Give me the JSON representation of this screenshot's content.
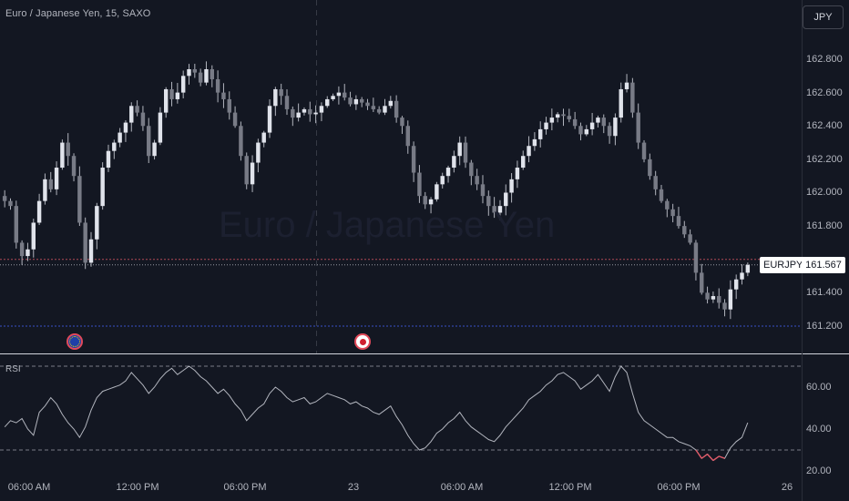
{
  "header": {
    "symbol_description": "Euro / Japanese Yen, 15, SAXO",
    "currency_button": "JPY"
  },
  "watermark": "Euro / Japanese Yen",
  "price_axis": {
    "labels": [
      "162.800",
      "162.600",
      "162.400",
      "162.200",
      "162.000",
      "161.800",
      "161.400",
      "161.200"
    ],
    "symbol_tag": "EURJPY",
    "last_price": "161.567"
  },
  "rsi": {
    "title": "RSI",
    "axis_labels": [
      "60.00",
      "40.00",
      "20.00"
    ]
  },
  "time_axis": {
    "labels": [
      "06:00 AM",
      "12:00 PM",
      "06:00 PM",
      "23",
      "06:00 AM",
      "12:00 PM",
      "06:00 PM",
      "26"
    ]
  },
  "events": [
    {
      "name": "eu-event-icon"
    },
    {
      "name": "jp-event-icon"
    }
  ],
  "colors": {
    "background": "#131722",
    "candles": "#b2b5be",
    "red_line": "#b24a56",
    "blue_line": "#3a50c8",
    "rsi_line": "#b2b5be",
    "rsi_oversold_fill": "#e05a68"
  },
  "chart_data": {
    "type": "line",
    "instrument": "EURJPY",
    "price_closes_approx": [
      161.95,
      161.92,
      161.7,
      161.62,
      161.66,
      161.82,
      161.95,
      162.08,
      162.02,
      162.15,
      162.3,
      162.22,
      162.1,
      161.82,
      161.58,
      161.72,
      161.92,
      162.15,
      162.25,
      162.3,
      162.36,
      162.42,
      162.52,
      162.48,
      162.4,
      162.22,
      162.3,
      162.48,
      162.62,
      162.56,
      162.6,
      162.7,
      162.74,
      162.72,
      162.66,
      162.74,
      162.68,
      162.6,
      162.56,
      162.48,
      162.4,
      162.22,
      162.05,
      162.18,
      162.3,
      162.36,
      162.52,
      162.62,
      162.58,
      162.5,
      162.45,
      162.48,
      162.5,
      162.47,
      162.48,
      162.52,
      162.56,
      162.58,
      162.6,
      162.57,
      162.53,
      162.56,
      162.54,
      162.52,
      162.5,
      162.48,
      162.52,
      162.55,
      162.45,
      162.4,
      162.28,
      162.12,
      161.98,
      161.93,
      161.96,
      162.05,
      162.1,
      162.15,
      162.22,
      162.3,
      162.18,
      162.1,
      162.05,
      161.98,
      161.92,
      161.88,
      161.92,
      162.0,
      162.08,
      162.15,
      162.22,
      162.28,
      162.32,
      162.38,
      162.42,
      162.45,
      162.47,
      162.46,
      162.44,
      162.4,
      162.35,
      162.38,
      162.42,
      162.45,
      162.4,
      162.34,
      162.45,
      162.62,
      162.66,
      162.48,
      162.3,
      162.2,
      162.1,
      162.02,
      161.95,
      161.9,
      161.86,
      161.8,
      161.75,
      161.7,
      161.52,
      161.4,
      161.36,
      161.38,
      161.34,
      161.3,
      161.42,
      161.48,
      161.52,
      161.567
    ],
    "rsi_values_approx": [
      41,
      44,
      43,
      45,
      40,
      37,
      48,
      51,
      55,
      52,
      47,
      43,
      40,
      36,
      41,
      49,
      55,
      58,
      59,
      60,
      61,
      63,
      67,
      64,
      61,
      57,
      60,
      64,
      67,
      69,
      66,
      68,
      70,
      68,
      65,
      63,
      60,
      57,
      59,
      56,
      52,
      49,
      44,
      47,
      50,
      52,
      57,
      60,
      58,
      55,
      53,
      54,
      55,
      52,
      53,
      55,
      57,
      56,
      55,
      54,
      52,
      53,
      51,
      50,
      48,
      47,
      49,
      51,
      46,
      42,
      37,
      33,
      30,
      31,
      34,
      38,
      40,
      43,
      45,
      48,
      44,
      41,
      39,
      37,
      35,
      34,
      37,
      41,
      44,
      47,
      50,
      54,
      56,
      58,
      61,
      63,
      66,
      67,
      65,
      63,
      59,
      61,
      63,
      66,
      62,
      58,
      65,
      70,
      67,
      57,
      48,
      44,
      42,
      40,
      38,
      36,
      36,
      34,
      33,
      32,
      30,
      26,
      28,
      25,
      27,
      26,
      31,
      34,
      36,
      43
    ],
    "price_reference_lines": [
      161.6,
      161.2
    ],
    "rsi_bands": [
      70,
      30
    ],
    "y_range_price": [
      161.1,
      162.95
    ],
    "y_range_rsi": [
      20,
      71
    ]
  }
}
